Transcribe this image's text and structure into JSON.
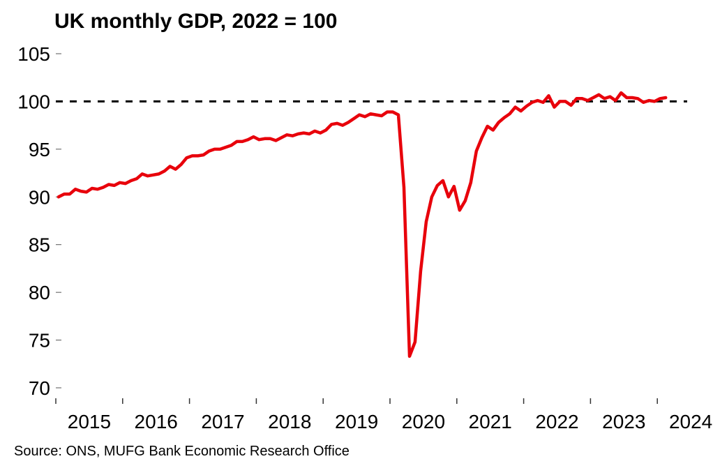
{
  "chart_data": {
    "type": "line",
    "title": "UK monthly GDP, 2022 = 100",
    "source": "Source: ONS, MUFG Bank Economic Research Office",
    "xlabel": "",
    "ylabel": "",
    "ylim": [
      70,
      105
    ],
    "yticks": [
      70,
      75,
      80,
      85,
      90,
      95,
      100,
      105
    ],
    "xticks": [
      "2015",
      "2016",
      "2017",
      "2018",
      "2019",
      "2020",
      "2021",
      "2022",
      "2023",
      "2024"
    ],
    "reference_line": {
      "value": 100,
      "style": "dashed",
      "color": "#000000"
    },
    "grid": false,
    "series": [
      {
        "name": "UK monthly GDP",
        "color": "#e8000b",
        "start": "2015-01",
        "frequency": "monthly",
        "values": [
          90.0,
          90.3,
          90.3,
          90.8,
          90.6,
          90.5,
          90.9,
          90.8,
          91.0,
          91.3,
          91.2,
          91.5,
          91.4,
          91.7,
          91.9,
          92.4,
          92.2,
          92.3,
          92.4,
          92.7,
          93.2,
          92.9,
          93.4,
          94.1,
          94.3,
          94.3,
          94.4,
          94.8,
          95.0,
          95.0,
          95.2,
          95.4,
          95.8,
          95.8,
          96.0,
          96.3,
          96.0,
          96.1,
          96.1,
          95.9,
          96.2,
          96.5,
          96.4,
          96.6,
          96.7,
          96.6,
          96.9,
          96.7,
          97.0,
          97.6,
          97.7,
          97.5,
          97.8,
          98.2,
          98.6,
          98.4,
          98.7,
          98.6,
          98.5,
          98.9,
          98.9,
          98.6,
          91.0,
          73.3,
          74.8,
          82.2,
          87.4,
          90.0,
          91.2,
          91.7,
          90.0,
          91.1,
          88.6,
          89.6,
          91.5,
          94.8,
          96.2,
          97.4,
          97.0,
          97.8,
          98.3,
          98.7,
          99.4,
          99.0,
          99.5,
          99.9,
          100.1,
          99.9,
          100.6,
          99.4,
          100.0,
          100.0,
          99.6,
          100.3,
          100.3,
          100.1,
          100.4,
          100.7,
          100.3,
          100.5,
          100.1,
          100.9,
          100.4,
          100.4,
          100.3,
          99.9,
          100.1,
          100.0,
          100.3,
          100.4
        ]
      }
    ]
  }
}
